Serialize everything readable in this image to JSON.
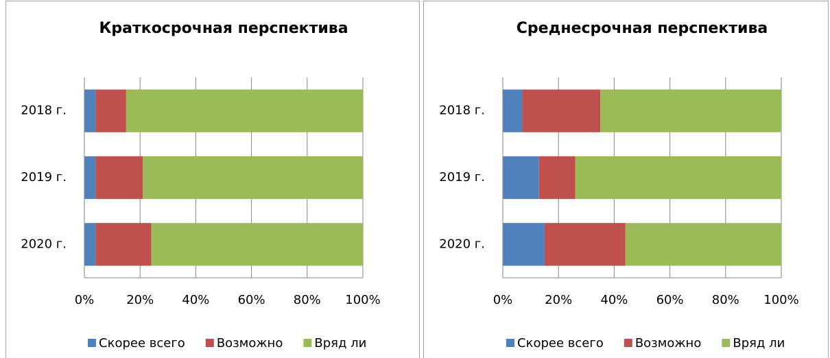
{
  "chart_data": [
    {
      "type": "bar",
      "title": "Краткосрочная перспектива",
      "categories": [
        "2018 г.",
        "2019 г.",
        "2020 г."
      ],
      "series": [
        {
          "name": "Скорее всего",
          "color": "#4f81bd",
          "values": [
            4,
            4,
            4
          ]
        },
        {
          "name": "Возможно",
          "color": "#c0504d",
          "values": [
            11,
            17,
            20
          ]
        },
        {
          "name": "Вряд ли",
          "color": "#9bbb59",
          "values": [
            85,
            79,
            76
          ]
        }
      ],
      "xlim": [
        0,
        100
      ],
      "xticks": [
        {
          "value": 0,
          "label": "0%"
        },
        {
          "value": 20,
          "label": "20%"
        },
        {
          "value": 40,
          "label": "40%"
        },
        {
          "value": 60,
          "label": "60%"
        },
        {
          "value": 80,
          "label": "80%"
        },
        {
          "value": 100,
          "label": "100%"
        }
      ],
      "grid": true,
      "legend": "bottom"
    },
    {
      "type": "bar",
      "title": "Среднесрочная перспектива",
      "categories": [
        "2018 г.",
        "2019 г.",
        "2020 г."
      ],
      "series": [
        {
          "name": "Скорее всего",
          "color": "#4f81bd",
          "values": [
            7,
            13,
            15
          ]
        },
        {
          "name": "Возможно",
          "color": "#c0504d",
          "values": [
            28,
            13,
            29
          ]
        },
        {
          "name": "Вряд ли",
          "color": "#9bbb59",
          "values": [
            65,
            74,
            56
          ]
        }
      ],
      "xlim": [
        0,
        100
      ],
      "xticks": [
        {
          "value": 0,
          "label": "0%"
        },
        {
          "value": 20,
          "label": "20%"
        },
        {
          "value": 40,
          "label": "40%"
        },
        {
          "value": 60,
          "label": "60%"
        },
        {
          "value": 80,
          "label": "80%"
        },
        {
          "value": 100,
          "label": "100%"
        }
      ],
      "grid": true,
      "legend": "bottom"
    }
  ]
}
